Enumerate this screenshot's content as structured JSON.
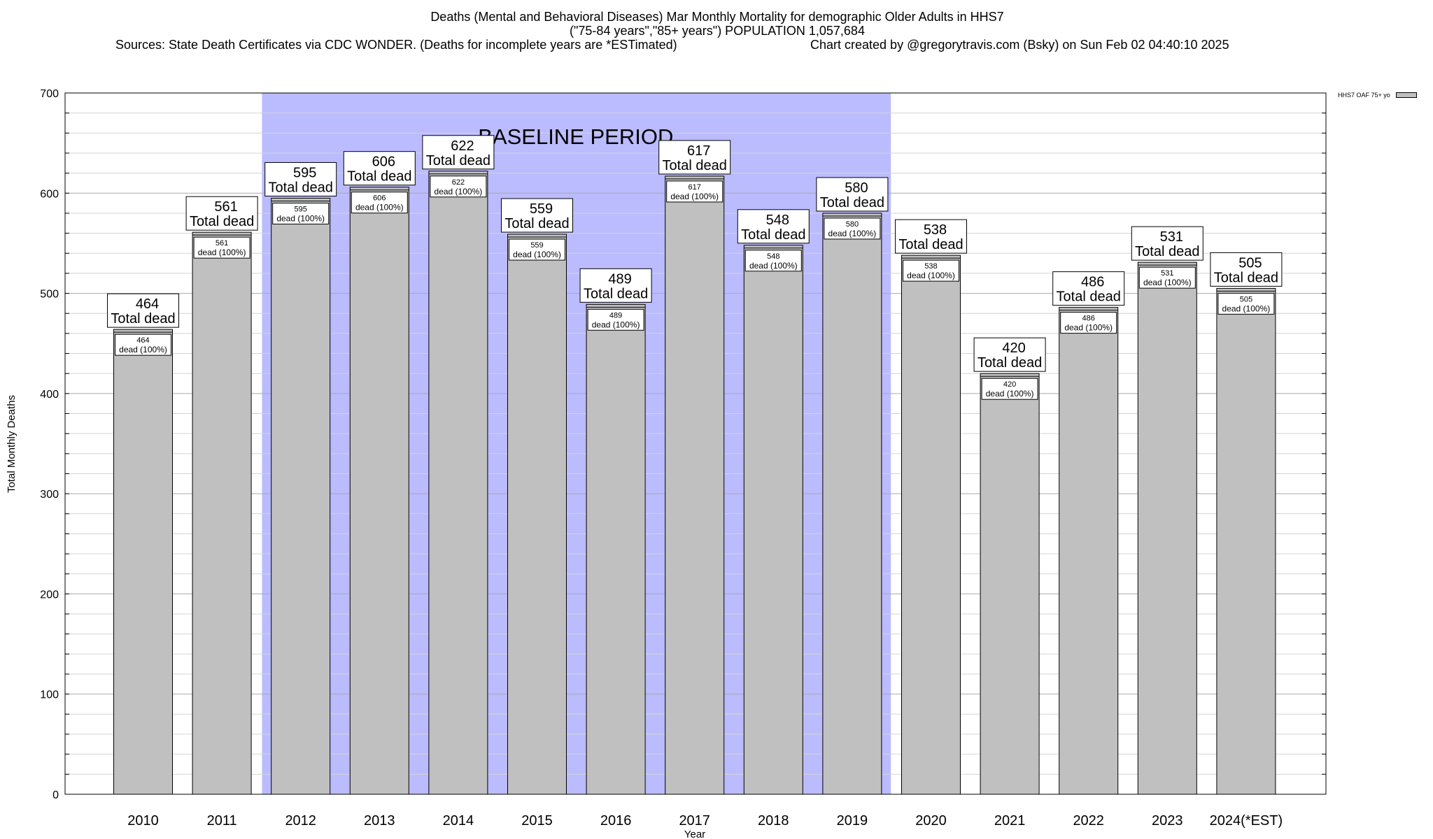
{
  "titles": {
    "line1": "Deaths (Mental and Behavioral Diseases) Mar Monthly Mortality for demographic Older Adults in HHS7",
    "line2": "(\"75-84 years\",\"85+ years\") POPULATION 1,057,684",
    "line3": "Sources: State Death Certificates via CDC WONDER. (Deaths for incomplete years are *ESTimated)",
    "credit": "Chart created by @gregorytravis.com (Bsky) on Sun Feb 02 04:40:10 2025"
  },
  "legend": {
    "label": "HHS7 OAF 75+ yo",
    "color": "#c0c0c0"
  },
  "chart_data": {
    "type": "bar",
    "xlabel": "Year",
    "ylabel": "Total Monthly Deaths",
    "ylim": [
      0,
      700
    ],
    "yticks": [
      0,
      100,
      200,
      300,
      400,
      500,
      600,
      700
    ],
    "grid": true,
    "legend_position": "top-right",
    "categories": [
      "2010",
      "2011",
      "2012",
      "2013",
      "2014",
      "2015",
      "2016",
      "2017",
      "2018",
      "2019",
      "2020",
      "2021",
      "2022",
      "2023",
      "2024(*EST)"
    ],
    "series": [
      {
        "name": "HHS7 OAF 75+ yo",
        "values": [
          464,
          561,
          595,
          606,
          622,
          559,
          489,
          617,
          548,
          580,
          538,
          420,
          486,
          531,
          505
        ]
      }
    ],
    "bar_label_text": "Total dead",
    "inner_label_text": "dead (100%)",
    "bar_color": "#c0c0c0",
    "baseline_period": {
      "label": "BASELINE PERIOD",
      "from": "2012",
      "to": "2019",
      "color": "#bbbbff"
    }
  }
}
